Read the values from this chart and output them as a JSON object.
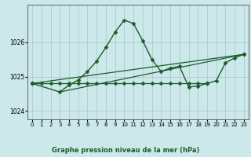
{
  "background_color": "#cce8ea",
  "grid_color": "#aacccc",
  "line_color": "#1a5c2a",
  "title": "Graphe pression niveau de la mer (hPa)",
  "xlim": [
    -0.5,
    23.5
  ],
  "ylim": [
    1023.75,
    1027.1
  ],
  "yticks": [
    1024,
    1025,
    1026
  ],
  "xticks": [
    0,
    1,
    2,
    3,
    4,
    5,
    6,
    7,
    8,
    9,
    10,
    11,
    12,
    13,
    14,
    15,
    16,
    17,
    18,
    19,
    20,
    21,
    22,
    23
  ],
  "series": [
    {
      "x": [
        0,
        3,
        4,
        5,
        6,
        7,
        8,
        9,
        10,
        11,
        12,
        13,
        14,
        15,
        16,
        17,
        18,
        19,
        20,
        21,
        22,
        23
      ],
      "y": [
        1024.8,
        1024.55,
        1024.75,
        1024.9,
        1025.15,
        1025.45,
        1025.85,
        1026.3,
        1026.65,
        1026.55,
        1026.05,
        1025.5,
        1025.15,
        1025.25,
        1025.3,
        1024.7,
        1024.72,
        1024.8,
        1024.88,
        1025.4,
        1025.55,
        1025.65
      ],
      "marker": "D",
      "markersize": 2.5,
      "linewidth": 1.0,
      "linestyle": "solid"
    },
    {
      "x": [
        0,
        1,
        2,
        3,
        4,
        5,
        6,
        7,
        8,
        9,
        10,
        11,
        12,
        13,
        14,
        15,
        16,
        17,
        18,
        19
      ],
      "y": [
        1024.8,
        1024.8,
        1024.8,
        1024.8,
        1024.8,
        1024.8,
        1024.8,
        1024.8,
        1024.8,
        1024.8,
        1024.8,
        1024.8,
        1024.8,
        1024.8,
        1024.8,
        1024.8,
        1024.8,
        1024.8,
        1024.8,
        1024.8
      ],
      "marker": "D",
      "markersize": 2.5,
      "linewidth": 0.8,
      "linestyle": "dotted"
    },
    {
      "x": [
        0,
        23
      ],
      "y": [
        1024.8,
        1025.65
      ],
      "marker": "D",
      "markersize": 2.5,
      "linewidth": 0.9,
      "linestyle": "solid"
    },
    {
      "x": [
        3,
        23
      ],
      "y": [
        1024.55,
        1025.65
      ],
      "marker": null,
      "markersize": 2.5,
      "linewidth": 0.9,
      "linestyle": "solid"
    },
    {
      "x": [
        0,
        19
      ],
      "y": [
        1024.8,
        1024.8
      ],
      "marker": "D",
      "markersize": 2.5,
      "linewidth": 0.9,
      "linestyle": "solid"
    }
  ]
}
